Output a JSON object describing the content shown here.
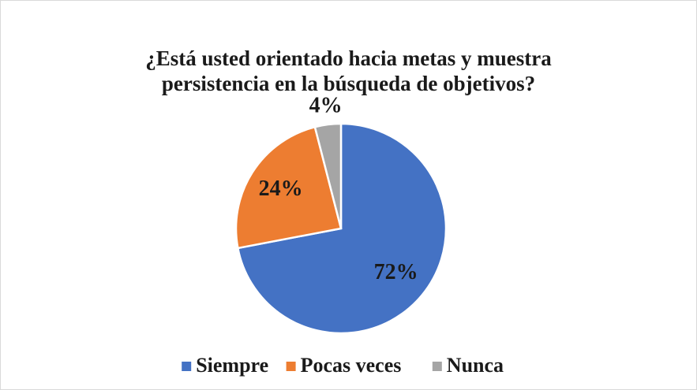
{
  "chart_data": {
    "type": "pie",
    "title": "¿Está usted orientado hacia metas y muestra persistencia en la búsqueda de objetivos?",
    "categories": [
      "Siempre",
      "Pocas veces",
      "Nunca"
    ],
    "values": [
      72,
      24,
      4
    ],
    "value_labels": [
      "72%",
      "24%",
      "4%"
    ],
    "colors": [
      "#4472c4",
      "#ed7d31",
      "#a5a5a5"
    ],
    "legend": "bottom"
  }
}
